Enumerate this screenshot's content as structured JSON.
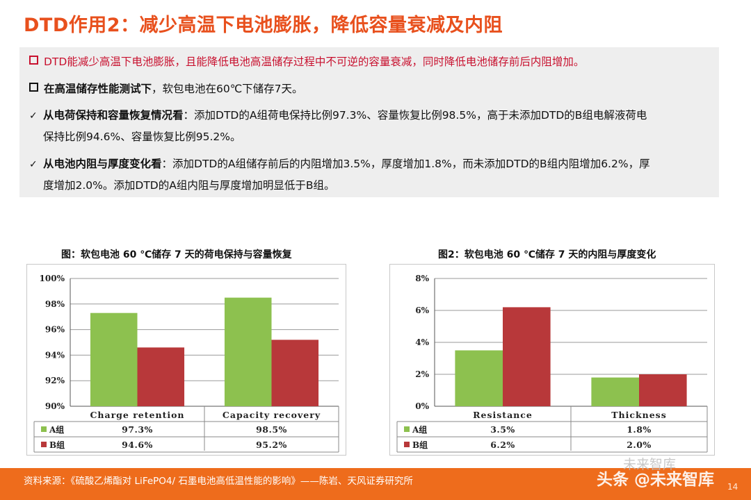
{
  "title": "DTD作用2：减少高温下电池膨胀，降低容量衰减及内阻",
  "bullets": {
    "b1": "DTD能减少高温下电池膨胀，且能降低电池高温储存过程中不可逆的容量衰减，同时降低电池储存前后内阻增加。",
    "b2_bold": "在高温储存性能测试下",
    "b2_rest": "，软包电池在60℃下储存7天。",
    "c1_bold": "从电荷保持和容量恢复情况看",
    "c1_rest1": "：添加DTD的A组荷电保持比例97.3%、容量恢复比例98.5%，高于未添加DTD的B组电解液荷电",
    "c1_rest2": "保持比例94.6%、容量恢复比例95.2%。",
    "c2_bold": "从电池内阻与厚度变化看",
    "c2_rest1": "：添加DTD的A组储存前后的内阻增加3.5%，厚度增加1.8%，而未添加DTD的B组内阻增加6.2%，厚",
    "c2_rest2": "度增加2.0%。添加DTD的A组内阻与厚度增加明显低于B组。"
  },
  "chart1_title": "图：软包电池 60 ℃储存 7 天的荷电保持与容量恢复",
  "chart2_title": "图2：软包电池 60 ℃储存 7 天的内阻与厚度变化",
  "chart_data": [
    {
      "type": "bar",
      "categories": [
        "Charge retention",
        "Capacity recovery"
      ],
      "series": [
        {
          "name": "A组",
          "values": [
            97.3,
            98.5
          ],
          "labels": [
            "97.3%",
            "98.5%"
          ],
          "color": "#8dc14f"
        },
        {
          "name": "B组",
          "values": [
            94.6,
            95.2
          ],
          "labels": [
            "94.6%",
            "95.2%"
          ],
          "color": "#b8383a"
        }
      ],
      "ylim": [
        90,
        100
      ],
      "yticks": [
        90,
        92,
        94,
        96,
        98,
        100
      ],
      "ytick_labels": [
        "90%",
        "92%",
        "94%",
        "96%",
        "98%",
        "100%"
      ],
      "grid": true,
      "data_table": true
    },
    {
      "type": "bar",
      "categories": [
        "Resistance",
        "Thickness"
      ],
      "series": [
        {
          "name": "A组",
          "values": [
            3.5,
            1.8
          ],
          "labels": [
            "3.5%",
            "1.8%"
          ],
          "color": "#8dc14f"
        },
        {
          "name": "B组",
          "values": [
            6.2,
            2.0
          ],
          "labels": [
            "6.2%",
            "2.0%"
          ],
          "color": "#b8383a"
        }
      ],
      "ylim": [
        0,
        8
      ],
      "yticks": [
        0,
        2,
        4,
        6,
        8
      ],
      "ytick_labels": [
        "0%",
        "2%",
        "4%",
        "6%",
        "8%"
      ],
      "grid": true,
      "data_table": true
    }
  ],
  "source": "资料来源：《硫酸乙烯酯对 LiFePO4/ 石墨电池高低温性能的影响》——陈岩、天风证券研究所",
  "watermark": "头条 @未来智库",
  "watermark_top": "未来智库",
  "page_number": "14"
}
